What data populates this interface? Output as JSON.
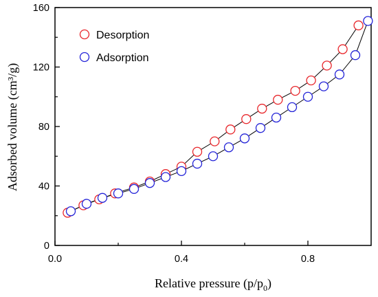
{
  "chart_data": {
    "type": "scatter",
    "xlabel": "Relative pressure (p/p",
    "xlabel_sub": "0",
    "xlabel_close": ")",
    "ylabel": "Adsorbed volume (cm³/g)",
    "xlim": [
      0.0,
      1.0
    ],
    "ylim": [
      0,
      160
    ],
    "xticks": [
      0.0,
      0.4,
      0.8
    ],
    "xtick_labels": [
      "0.0",
      "0.4",
      "0.8"
    ],
    "yticks": [
      0,
      40,
      80,
      120,
      160
    ],
    "ytick_labels": [
      "0",
      "40",
      "80",
      "120",
      "160"
    ],
    "grid": false,
    "legend_position": "top-left",
    "series": [
      {
        "name": "Desorption",
        "color": "#e8262b",
        "marker": "open-circle",
        "connected": true,
        "x": [
          0.04,
          0.09,
          0.14,
          0.19,
          0.25,
          0.3,
          0.35,
          0.4,
          0.45,
          0.505,
          0.555,
          0.605,
          0.655,
          0.705,
          0.76,
          0.81,
          0.86,
          0.91,
          0.96
        ],
        "y": [
          22,
          27,
          31,
          35,
          39,
          43,
          48,
          53,
          63,
          70,
          78,
          85,
          92,
          98,
          104,
          111,
          121,
          132,
          148
        ]
      },
      {
        "name": "Adsorption",
        "color": "#2323d8",
        "marker": "open-circle",
        "connected": true,
        "x": [
          0.05,
          0.1,
          0.15,
          0.2,
          0.25,
          0.3,
          0.35,
          0.4,
          0.45,
          0.5,
          0.55,
          0.6,
          0.65,
          0.7,
          0.75,
          0.8,
          0.85,
          0.9,
          0.95,
          0.99
        ],
        "y": [
          23,
          28,
          32,
          35,
          38,
          42,
          46,
          50,
          55,
          60,
          66,
          72,
          79,
          86,
          93,
          100,
          107,
          115,
          128,
          151
        ]
      }
    ]
  }
}
